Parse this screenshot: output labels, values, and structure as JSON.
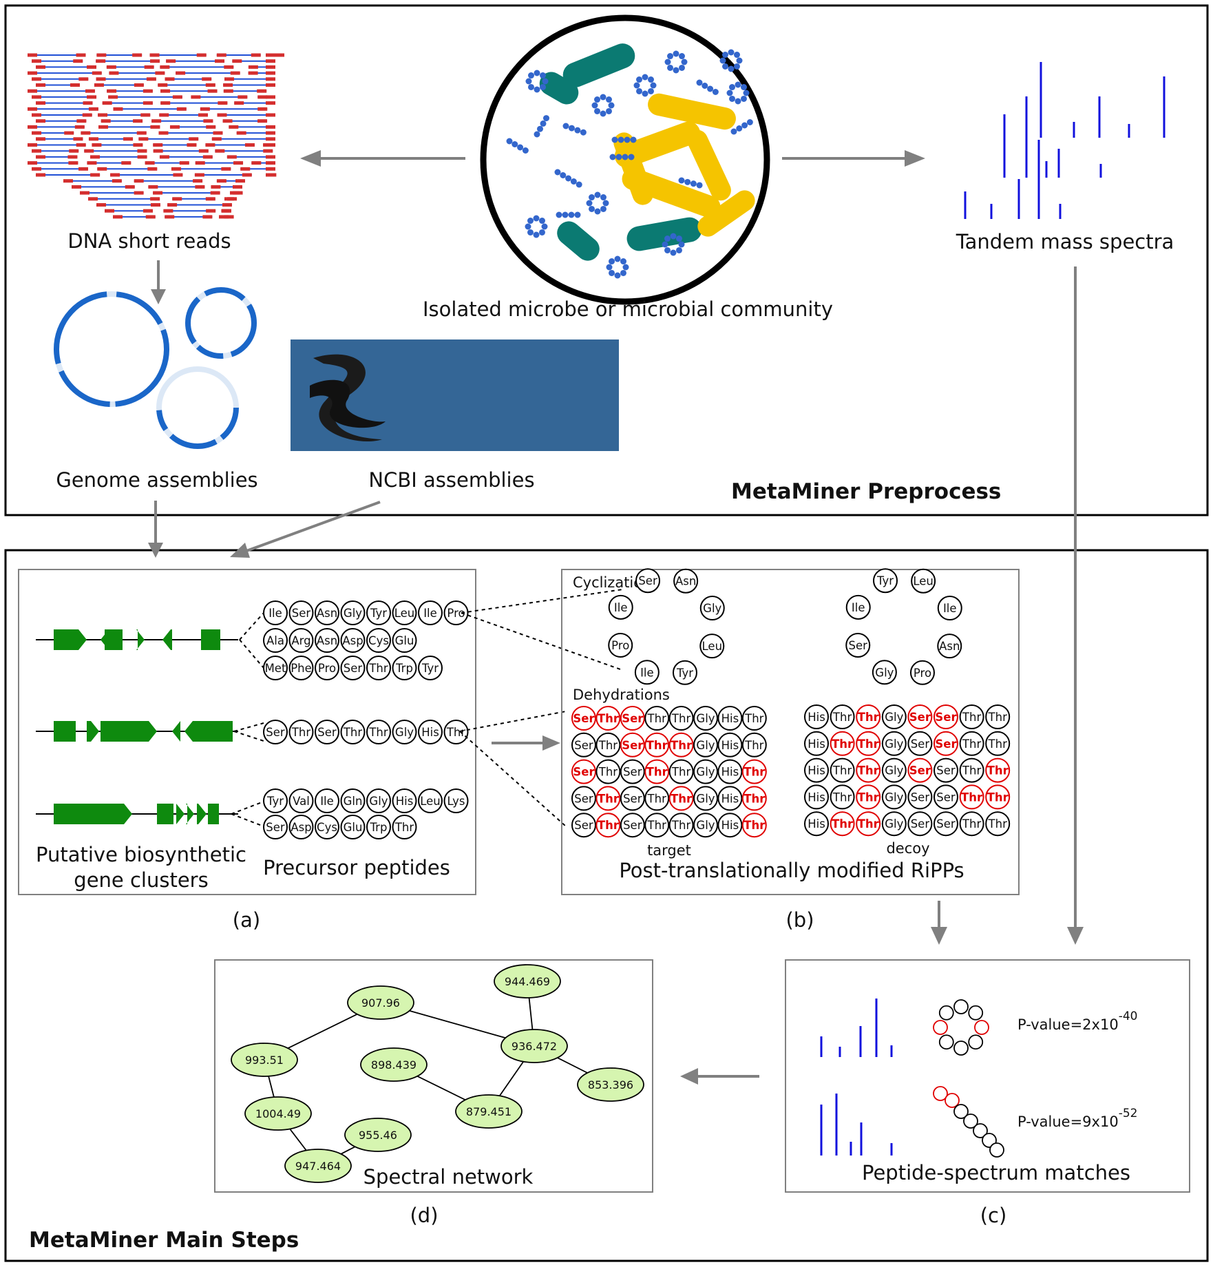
{
  "sections": {
    "preprocess_title": "MetaMiner Preprocess",
    "main_title": "MetaMiner Main Steps"
  },
  "labels": {
    "dna_reads": "DNA short reads",
    "community": "Isolated microbe or microbial community",
    "spectra": "Tandem mass spectra",
    "genome_assemblies": "Genome assemblies",
    "ncbi_assemblies": "NCBI assemblies",
    "bgc_line1": "Putative biosynthetic",
    "bgc_line2": "gene clusters",
    "precursor": "Precursor peptides",
    "cyclization": "Cyclization",
    "dehydrations": "Dehydrations",
    "target": "target",
    "decoy": "decoy",
    "ripps": "Post-translationally modified RiPPs",
    "spectral_network": "Spectral network",
    "psm": "Peptide-spectrum matches",
    "panel_a": "(a)",
    "panel_b": "(b)",
    "panel_c": "(c)",
    "panel_d": "(d)"
  },
  "pvalues": [
    {
      "prefix": "P-value=2x10",
      "exponent": "-40"
    },
    {
      "prefix": "P-value=9x10",
      "exponent": "-52"
    }
  ],
  "precursor_peptides": [
    [
      "Ile",
      "Ser",
      "Asn",
      "Gly",
      "Tyr",
      "Leu",
      "Ile",
      "Pro"
    ],
    [
      "Ala",
      "Arg",
      "Asn",
      "Asp",
      "Cys",
      "Glu"
    ],
    [
      "Met",
      "Phe",
      "Pro",
      "Ser",
      "Thr",
      "Trp",
      "Tyr"
    ],
    [
      "Ser",
      "Thr",
      "Ser",
      "Thr",
      "Thr",
      "Gly",
      "His",
      "Thr"
    ],
    [
      "Tyr",
      "Val",
      "Ile",
      "Gln",
      "Gly",
      "His",
      "Leu",
      "Lys"
    ],
    [
      "Ser",
      "Asp",
      "Cys",
      "Glu",
      "Trp",
      "Thr"
    ]
  ],
  "cyclic_target": [
    "Ser",
    "Asn",
    "Gly",
    "Leu",
    "Tyr",
    "Ile",
    "Pro",
    "Ile"
  ],
  "cyclic_decoy": [
    "Tyr",
    "Leu",
    "Ile",
    "Asn",
    "Pro",
    "Gly",
    "Ser",
    "Ile"
  ],
  "target_rows": [
    "Ser*,Thr*,Ser*,Thr,Thr,Gly,His,Thr",
    "Ser,Thr,Ser*,Thr*,Thr*,Gly,His,Thr",
    "Ser*,Thr,Ser,Thr*,Thr,Gly,His,Thr*",
    "Ser,Thr*,Ser,Thr,Thr*,Gly,His,Thr*",
    "Ser,Thr*,Ser,Thr,Thr,Gly,His,Thr*"
  ],
  "decoy_rows": [
    "His,Thr,Thr*,Gly,Ser*,Ser*,Thr,Thr",
    "His,Thr*,Thr*,Gly,Ser,Ser*,Thr,Thr",
    "His,Thr,Thr*,Gly,Ser*,Ser,Thr,Thr*",
    "His,Thr,Thr*,Gly,Ser,Ser,Thr*,Thr*",
    "His,Thr*,Thr*,Gly,Ser,Ser,Thr,Thr"
  ],
  "network_nodes": [
    "907.96",
    "944.469",
    "993.51",
    "936.472",
    "898.439",
    "853.396",
    "879.451",
    "1004.49",
    "955.46",
    "947.464"
  ],
  "colors": {
    "read_line": "#1f4fd6",
    "read_end": "#d42e2e",
    "dna_circle": "#1a66c8",
    "ncbi_panel": "#346696",
    "gene": "#0e8a0e",
    "bacteria_teal": "#0b7a72",
    "bacteria_yellow": "#f5c400",
    "cocci": "#3366cc",
    "spectrum": "#1111dd",
    "arrow": "#808080",
    "modified": "#e00000",
    "node_fill": "#d6f5b0"
  }
}
